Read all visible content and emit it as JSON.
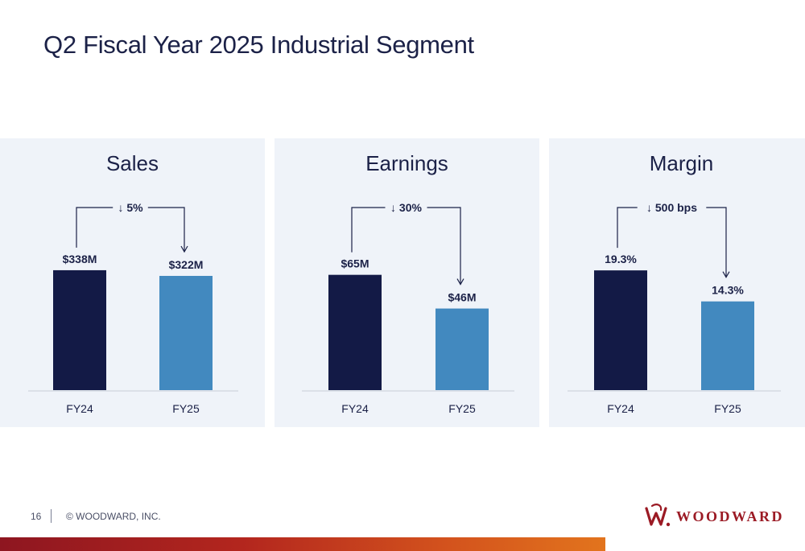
{
  "slide": {
    "title": "Q2 Fiscal Year 2025 Industrial Segment",
    "page_number": "16",
    "copyright": "© WOODWARD, INC.",
    "logo_text": "WOODWARD"
  },
  "colors": {
    "title": "#1b2147",
    "bar_prior": "#131a46",
    "bar_current": "#4289bf",
    "panel_bg": "#eff3f9",
    "brand_red": "#9b1a24"
  },
  "chart_data": [
    {
      "type": "bar",
      "title": "Sales",
      "categories": [
        "FY24",
        "FY25"
      ],
      "values": [
        338,
        322
      ],
      "data_labels": [
        "$338M",
        "$322M"
      ],
      "unit": "$M",
      "change_label": "↓ 5%",
      "ylim": [
        0,
        390
      ]
    },
    {
      "type": "bar",
      "title": "Earnings",
      "categories": [
        "FY24",
        "FY25"
      ],
      "values": [
        65,
        46
      ],
      "data_labels": [
        "$65M",
        "$46M"
      ],
      "unit": "$M",
      "change_label": "↓ 30%",
      "ylim": [
        0,
        78
      ]
    },
    {
      "type": "bar",
      "title": "Margin",
      "categories": [
        "FY24",
        "FY25"
      ],
      "values": [
        19.3,
        14.3
      ],
      "data_labels": [
        "19.3%",
        "14.3%"
      ],
      "unit": "%",
      "change_label": "↓ 500 bps",
      "ylim": [
        0,
        22.3
      ]
    }
  ]
}
